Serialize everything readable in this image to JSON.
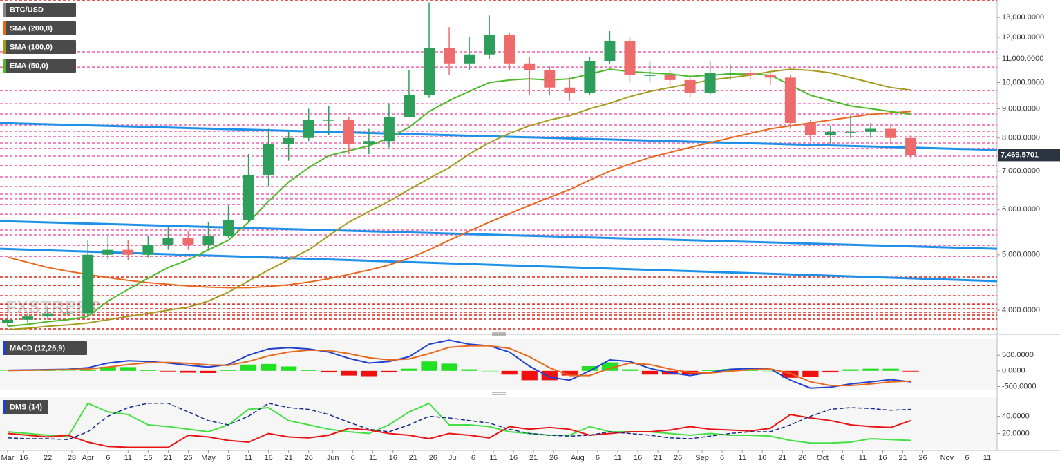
{
  "chart_data": {
    "type": "candlestick",
    "title": "BTC/USD",
    "watermark": "FXSTREET",
    "x": [
      -20,
      -15,
      -10,
      -5,
      0,
      5,
      10,
      15,
      20,
      25,
      30,
      35,
      40,
      45,
      50,
      55,
      60,
      65,
      70,
      75,
      80,
      85,
      90,
      95,
      100,
      105,
      110,
      115,
      120,
      125,
      130,
      135,
      140,
      145,
      150,
      155,
      160,
      165,
      170,
      175,
      180,
      185,
      190,
      195,
      200,
      205
    ],
    "open": [
      3800,
      3850,
      3900,
      3950,
      3950,
      5000,
      5100,
      5000,
      5200,
      5350,
      5200,
      5400,
      5750,
      6900,
      7800,
      8000,
      8600,
      8600,
      7800,
      7900,
      8700,
      9500,
      11500,
      10800,
      11200,
      12100,
      10800,
      10500,
      9800,
      9600,
      10900,
      11800,
      10300,
      10300,
      10100,
      9600,
      10400,
      10400,
      10300,
      10200,
      8500,
      8100,
      8200,
      8200,
      8300,
      8000
    ],
    "high": [
      3900,
      3950,
      4050,
      4050,
      5300,
      5400,
      5300,
      5400,
      5600,
      5500,
      5700,
      6100,
      7500,
      8300,
      8200,
      9000,
      9100,
      8700,
      8300,
      9200,
      10500,
      13800,
      12500,
      12000,
      13100,
      12200,
      11100,
      10700,
      10200,
      11100,
      12300,
      12000,
      10900,
      10500,
      10300,
      10900,
      10800,
      10500,
      10400,
      10300,
      8600,
      8400,
      8800,
      8500,
      8400,
      8100
    ],
    "low": [
      3750,
      3800,
      3850,
      3900,
      3900,
      4900,
      4900,
      4950,
      5100,
      5100,
      5100,
      5350,
      5700,
      6600,
      7300,
      7900,
      8100,
      7500,
      7500,
      7700,
      8700,
      9400,
      10300,
      10500,
      11000,
      10500,
      9500,
      9500,
      9300,
      9500,
      10800,
      10000,
      10000,
      9900,
      9400,
      9500,
      10100,
      10100,
      9900,
      8300,
      7900,
      7800,
      8000,
      8000,
      7800,
      7350
    ],
    "close": [
      3850,
      3900,
      3950,
      3950,
      5000,
      5100,
      5000,
      5200,
      5350,
      5200,
      5400,
      5750,
      6900,
      7800,
      8000,
      8600,
      8600,
      7800,
      7900,
      8700,
      9500,
      11500,
      10800,
      11200,
      12100,
      10800,
      10500,
      9800,
      9600,
      10900,
      11800,
      10300,
      10300,
      10100,
      9600,
      10400,
      10400,
      10300,
      10200,
      8500,
      8100,
      8200,
      8200,
      8300,
      8000,
      7470
    ],
    "up_color": "#2e9e5b",
    "down_color": "#ee6b6b",
    "xlim": [
      -21.9,
      226.5
    ],
    "xticks": [
      {
        "value": -20,
        "label": "Mar"
      },
      {
        "value": -16,
        "label": "16"
      },
      {
        "value": -10,
        "label": "22"
      },
      {
        "value": -4,
        "label": "28"
      },
      {
        "value": 0,
        "label": "Apr"
      },
      {
        "value": 5,
        "label": "6"
      },
      {
        "value": 10,
        "label": "11"
      },
      {
        "value": 15,
        "label": "16"
      },
      {
        "value": 20,
        "label": "21"
      },
      {
        "value": 25,
        "label": "26"
      },
      {
        "value": 30,
        "label": "May"
      },
      {
        "value": 35,
        "label": "6"
      },
      {
        "value": 40,
        "label": "11"
      },
      {
        "value": 45,
        "label": "16"
      },
      {
        "value": 50,
        "label": "21"
      },
      {
        "value": 55,
        "label": "26"
      },
      {
        "value": 61,
        "label": "Jun"
      },
      {
        "value": 66,
        "label": "6"
      },
      {
        "value": 71,
        "label": "11"
      },
      {
        "value": 76,
        "label": "16"
      },
      {
        "value": 81,
        "label": "21"
      },
      {
        "value": 86,
        "label": "26"
      },
      {
        "value": 91,
        "label": "Jul"
      },
      {
        "value": 96,
        "label": "6"
      },
      {
        "value": 101,
        "label": "11"
      },
      {
        "value": 106,
        "label": "16"
      },
      {
        "value": 111,
        "label": "21"
      },
      {
        "value": 116,
        "label": "26"
      },
      {
        "value": 122,
        "label": "Aug"
      },
      {
        "value": 127,
        "label": "6"
      },
      {
        "value": 132,
        "label": "11"
      },
      {
        "value": 137,
        "label": "16"
      },
      {
        "value": 142,
        "label": "21"
      },
      {
        "value": 147,
        "label": "26"
      },
      {
        "value": 153,
        "label": "Sep"
      },
      {
        "value": 158,
        "label": "6"
      },
      {
        "value": 163,
        "label": "11"
      },
      {
        "value": 168,
        "label": "16"
      },
      {
        "value": 173,
        "label": "21"
      },
      {
        "value": 178,
        "label": "26"
      },
      {
        "value": 183,
        "label": "Oct"
      },
      {
        "value": 188,
        "label": "6"
      },
      {
        "value": 193,
        "label": "11"
      },
      {
        "value": 198,
        "label": "16"
      },
      {
        "value": 203,
        "label": "21"
      },
      {
        "value": 208,
        "label": "26"
      },
      {
        "value": 214,
        "label": "Nov"
      },
      {
        "value": 219,
        "label": "6"
      },
      {
        "value": 224,
        "label": "11"
      }
    ],
    "ylim": [
      3670,
      13940
    ],
    "log_scale": true,
    "yticks": [
      {
        "value": 4000,
        "label": "4,000.0000"
      },
      {
        "value": 5000,
        "label": "5,000.0000"
      },
      {
        "value": 6000,
        "label": "6,000.0000"
      },
      {
        "value": 7000,
        "label": "7,000.0000"
      },
      {
        "value": 8000,
        "label": "8,000.0000"
      },
      {
        "value": 9000,
        "label": "9,000.0000"
      },
      {
        "value": 10000,
        "label": "10,000.0000"
      },
      {
        "value": 11000,
        "label": "11,000.0000"
      },
      {
        "value": 12000,
        "label": "12,000.0000"
      },
      {
        "value": 13000,
        "label": "13,000.0000"
      }
    ],
    "last_price": {
      "value": 7469.5701,
      "label": "7,469.5701"
    },
    "overlays": [
      {
        "name": "SMA (200,0)",
        "color": "#e8681e",
        "values": [
          4950,
          4850,
          4750,
          4680,
          4620,
          4560,
          4510,
          4470,
          4440,
          4410,
          4390,
          4380,
          4380,
          4400,
          4430,
          4480,
          4540,
          4620,
          4700,
          4800,
          4930,
          5100,
          5300,
          5500,
          5700,
          5900,
          6100,
          6300,
          6500,
          6750,
          7000,
          7200,
          7400,
          7550,
          7700,
          7850,
          8000,
          8150,
          8300,
          8400,
          8500,
          8600,
          8700,
          8800,
          8850,
          8900
        ]
      },
      {
        "name": "SMA (100,0)",
        "color": "#a49a1c",
        "values": [
          3700,
          3720,
          3750,
          3770,
          3800,
          3850,
          3900,
          3950,
          4000,
          4050,
          4150,
          4300,
          4500,
          4700,
          4900,
          5100,
          5400,
          5700,
          5950,
          6200,
          6500,
          6800,
          7100,
          7500,
          7850,
          8150,
          8400,
          8600,
          8750,
          9000,
          9200,
          9450,
          9650,
          9800,
          9950,
          10100,
          10200,
          10300,
          10450,
          10550,
          10500,
          10400,
          10200,
          10000,
          9800,
          9700
        ]
      },
      {
        "name": "EMA (50,0)",
        "color": "#4cbb2a",
        "values": [
          3750,
          3780,
          3820,
          3850,
          3900,
          4150,
          4350,
          4550,
          4750,
          4900,
          5100,
          5300,
          5700,
          6200,
          6700,
          7100,
          7450,
          7600,
          7750,
          8000,
          8350,
          8900,
          9300,
          9650,
          10000,
          10100,
          10150,
          10100,
          10150,
          10350,
          10550,
          10450,
          10400,
          10350,
          10250,
          10300,
          10350,
          10350,
          10300,
          9900,
          9500,
          9300,
          9100,
          9000,
          8900,
          8800
        ]
      }
    ],
    "levels": [
      {
        "color": "#f05fb0",
        "values": [
          11316,
          10642,
          9681,
          9184,
          8810,
          8427,
          8218,
          8039,
          7841,
          7670,
          7436,
          7154,
          6841,
          6580,
          6381,
          6261,
          6120,
          5885,
          5523,
          5416,
          5193,
          4968
        ]
      },
      {
        "color": "#e0201a",
        "values": [
          13899,
          4571,
          4420,
          4240,
          4101,
          4022,
          3967,
          3923,
          3858,
          3711
        ]
      }
    ],
    "trendlines": [
      {
        "color": "#1e90e8",
        "start": 8496,
        "end": 7624
      },
      {
        "color": "#1e90e8",
        "start": 5726,
        "end": 5122
      },
      {
        "color": "#1e90e8",
        "start": 5122,
        "end": 4496
      }
    ],
    "panels": [
      {
        "title": "MACD (12,26,9)",
        "ylim": [
          -622,
          1033
        ],
        "yticks": [
          {
            "value": 500,
            "label": "500.0000"
          },
          {
            "value": 0,
            "label": "0.0000"
          },
          {
            "value": -500,
            "label": "-500.0000"
          }
        ],
        "series": [
          {
            "kind": "histogram",
            "pos_color": "#22e022",
            "neg_color": "#f01010",
            "values": [
              10,
              10,
              10,
              10,
              40,
              130,
              120,
              40,
              -20,
              -60,
              -70,
              20,
              200,
              220,
              140,
              40,
              -50,
              -150,
              -170,
              -50,
              70,
              300,
              230,
              50,
              0,
              -120,
              -300,
              -300,
              -150,
              150,
              270,
              50,
              -120,
              -120,
              -100,
              20,
              60,
              40,
              0,
              -220,
              -200,
              -50,
              50,
              70,
              70,
              -20
            ]
          },
          {
            "kind": "line",
            "color": "#2040d0",
            "values": [
              20,
              30,
              40,
              50,
              100,
              250,
              320,
              300,
              250,
              180,
              120,
              200,
              500,
              700,
              740,
              700,
              600,
              400,
              250,
              300,
              450,
              850,
              980,
              850,
              800,
              600,
              150,
              -200,
              -300,
              0,
              350,
              300,
              80,
              -60,
              -150,
              -50,
              50,
              80,
              60,
              -300,
              -550,
              -520,
              -420,
              -350,
              -280,
              -350
            ]
          },
          {
            "kind": "line",
            "color": "#e8681e",
            "values": [
              10,
              20,
              30,
              40,
              60,
              120,
              200,
              260,
              270,
              240,
              190,
              180,
              300,
              480,
              600,
              660,
              650,
              550,
              420,
              350,
              380,
              550,
              750,
              800,
              800,
              720,
              450,
              100,
              -150,
              -150,
              80,
              250,
              200,
              60,
              -50,
              -70,
              -10,
              40,
              60,
              -80,
              -350,
              -470,
              -470,
              -420,
              -350,
              -330
            ]
          }
        ]
      },
      {
        "title": "DMS (14)",
        "ylim": [
          2,
          62
        ],
        "yticks": [
          {
            "value": 40,
            "label": "40.0000"
          },
          {
            "value": 20,
            "label": "20.0000"
          }
        ],
        "series": [
          {
            "kind": "line",
            "color": "#44e044",
            "values": [
              22,
              20,
              18,
              16,
              55,
              45,
              42,
              30,
              28,
              25,
              22,
              30,
              48,
              50,
              35,
              30,
              25,
              22,
              20,
              30,
              45,
              55,
              30,
              30,
              28,
              22,
              20,
              18,
              18,
              28,
              22,
              22,
              22,
              20,
              18,
              20,
              18,
              18,
              17,
              12,
              9,
              9,
              10,
              14,
              13,
              12
            ]
          },
          {
            "kind": "line",
            "color": "#e81414",
            "values": [
              20,
              18,
              16,
              18,
              10,
              5,
              4,
              4,
              4,
              18,
              16,
              12,
              10,
              20,
              16,
              15,
              18,
              26,
              24,
              20,
              18,
              14,
              20,
              18,
              15,
              28,
              25,
              27,
              25,
              18,
              20,
              22,
              22,
              24,
              28,
              25,
              24,
              23,
              26,
              42,
              38,
              35,
              30,
              28,
              27,
              35
            ]
          },
          {
            "kind": "dashed",
            "color": "#1a2a8a",
            "values": [
              15,
              14,
              14,
              13,
              22,
              40,
              50,
              55,
              55,
              45,
              35,
              30,
              40,
              55,
              50,
              48,
              42,
              33,
              25,
              22,
              30,
              40,
              38,
              35,
              32,
              25,
              20,
              18,
              17,
              18,
              22,
              20,
              18,
              15,
              14,
              17,
              20,
              22,
              22,
              30,
              40,
              48,
              50,
              49,
              47,
              48
            ]
          }
        ]
      }
    ]
  }
}
